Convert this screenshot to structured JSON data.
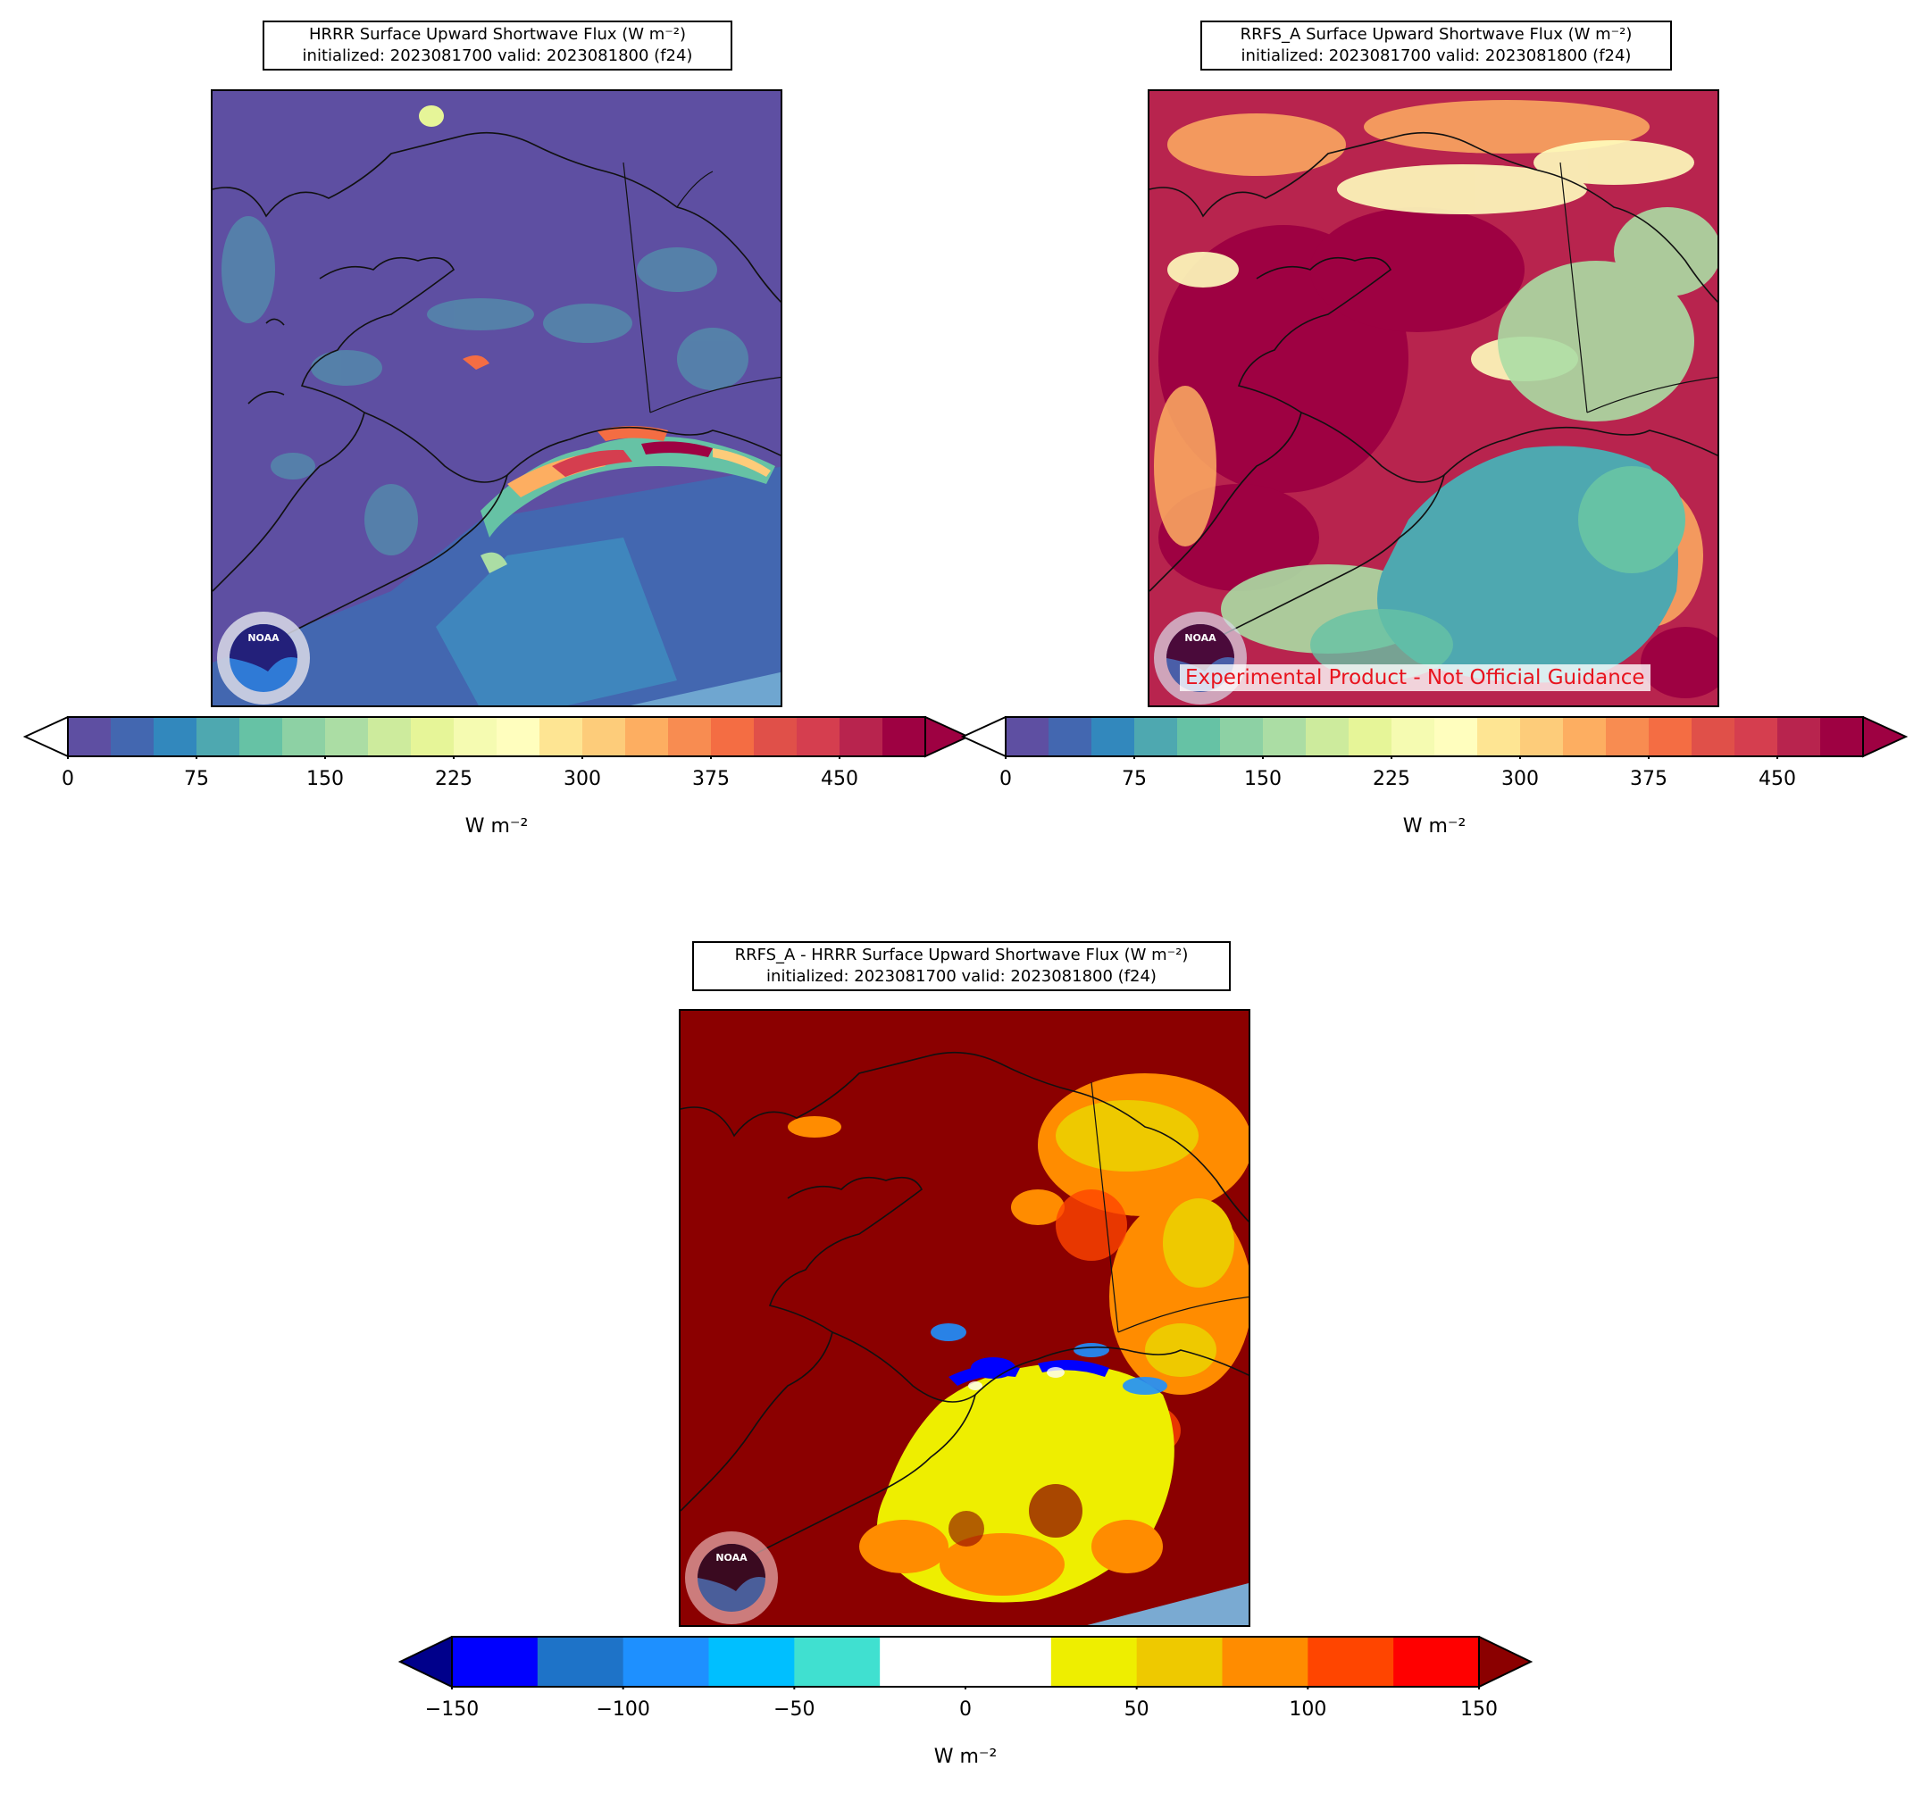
{
  "panels": {
    "hrrr": {
      "title_line1": "HRRR Surface Upward Shortwave Flux (W m⁻²)",
      "title_line2": "initialized: 2023081700 valid: 2023081800 (f24)"
    },
    "rrfs": {
      "title_line1": "RRFS_A Surface Upward Shortwave Flux (W m⁻²)",
      "title_line2": "initialized: 2023081700 valid: 2023081800 (f24)",
      "watermark": "Experimental Product - Not Official Guidance"
    },
    "diff": {
      "title_line1": "RRFS_A - HRRR Surface Upward Shortwave Flux (W m⁻²)",
      "title_line2": "initialized: 2023081700 valid: 2023081800 (f24)"
    }
  },
  "logo_text": "NOAA",
  "colorbars": {
    "flux": {
      "ticks": [
        "0",
        "75",
        "150",
        "225",
        "300",
        "375",
        "450"
      ],
      "unit": "W m⁻²",
      "colors": [
        "#5e4fa2",
        "#4367b0",
        "#3288bd",
        "#4ea8b0",
        "#66c2a5",
        "#8dd1a4",
        "#abdda4",
        "#cdeb9d",
        "#e6f598",
        "#f5fbb1",
        "#fffebe",
        "#fee593",
        "#fdcc7a",
        "#fdae61",
        "#f88c51",
        "#f46d43",
        "#e05049",
        "#d53e4f",
        "#b8244e",
        "#9e0142"
      ],
      "extend_min_color": "#ffffff",
      "extend_max_color": "#9e0142",
      "range": [
        0,
        500
      ]
    },
    "diff": {
      "ticks": [
        "−150",
        "−100",
        "−50",
        "0",
        "50",
        "100",
        "150"
      ],
      "unit": "W m⁻²",
      "colors": [
        "#0000ff",
        "#1e73c8",
        "#1e90ff",
        "#00bfff",
        "#40e0d0",
        "#ffffff",
        "#ffffff",
        "#eeee00",
        "#eec900",
        "#ff8c00",
        "#ff4500",
        "#ff0000"
      ],
      "extend_min_color": "#00008b",
      "extend_max_color": "#8b0000",
      "range": [
        -150,
        150
      ]
    }
  }
}
